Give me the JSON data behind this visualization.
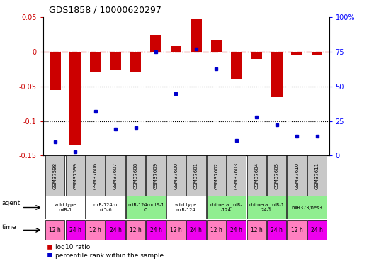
{
  "title": "GDS1858 / 10000620297",
  "samples": [
    "GSM37598",
    "GSM37599",
    "GSM37606",
    "GSM37607",
    "GSM37608",
    "GSM37609",
    "GSM37600",
    "GSM37601",
    "GSM37602",
    "GSM37603",
    "GSM37604",
    "GSM37605",
    "GSM37610",
    "GSM37611"
  ],
  "log10_ratio": [
    -0.055,
    -0.135,
    -0.03,
    -0.025,
    -0.03,
    0.025,
    0.008,
    0.047,
    0.018,
    -0.04,
    -0.01,
    -0.065,
    -0.005,
    -0.005
  ],
  "percentile_rank": [
    10,
    3,
    32,
    19,
    20,
    75,
    45,
    77,
    63,
    11,
    28,
    22,
    14,
    14
  ],
  "agents": [
    {
      "label": "wild type\nmiR-1",
      "cols": [
        0,
        1
      ],
      "color": "white"
    },
    {
      "label": "miR-124m\nut5-6",
      "cols": [
        2,
        3
      ],
      "color": "white"
    },
    {
      "label": "miR-124mut9-1\n0",
      "cols": [
        4,
        5
      ],
      "color": "#90ee90"
    },
    {
      "label": "wild type\nmiR-124",
      "cols": [
        6,
        7
      ],
      "color": "white"
    },
    {
      "label": "chimera_miR-\n-124",
      "cols": [
        8,
        9
      ],
      "color": "#90ee90"
    },
    {
      "label": "chimera_miR-1\n24-1",
      "cols": [
        10,
        11
      ],
      "color": "#90ee90"
    },
    {
      "label": "miR373/hes3",
      "cols": [
        12,
        13
      ],
      "color": "#90ee90"
    }
  ],
  "time_labels": [
    "12 h",
    "24 h",
    "12 h",
    "24 h",
    "12 h",
    "24 h",
    "12 h",
    "24 h",
    "12 h",
    "24 h",
    "12 h",
    "24 h",
    "12 h",
    "24 h"
  ],
  "bar_color": "#cc0000",
  "point_color": "#0000cc",
  "ylim_left": [
    -0.15,
    0.05
  ],
  "ylim_right": [
    0,
    100
  ],
  "yticks_left": [
    -0.15,
    -0.1,
    -0.05,
    0,
    0.05
  ],
  "yticks_right": [
    0,
    25,
    50,
    75,
    100
  ],
  "ytick_labels_right": [
    "0",
    "25",
    "50",
    "75",
    "100%"
  ],
  "sample_bg": "#c8c8c8",
  "time_color_12": "#ff80c0",
  "time_color_24": "#ee00ee",
  "background_color": "white"
}
